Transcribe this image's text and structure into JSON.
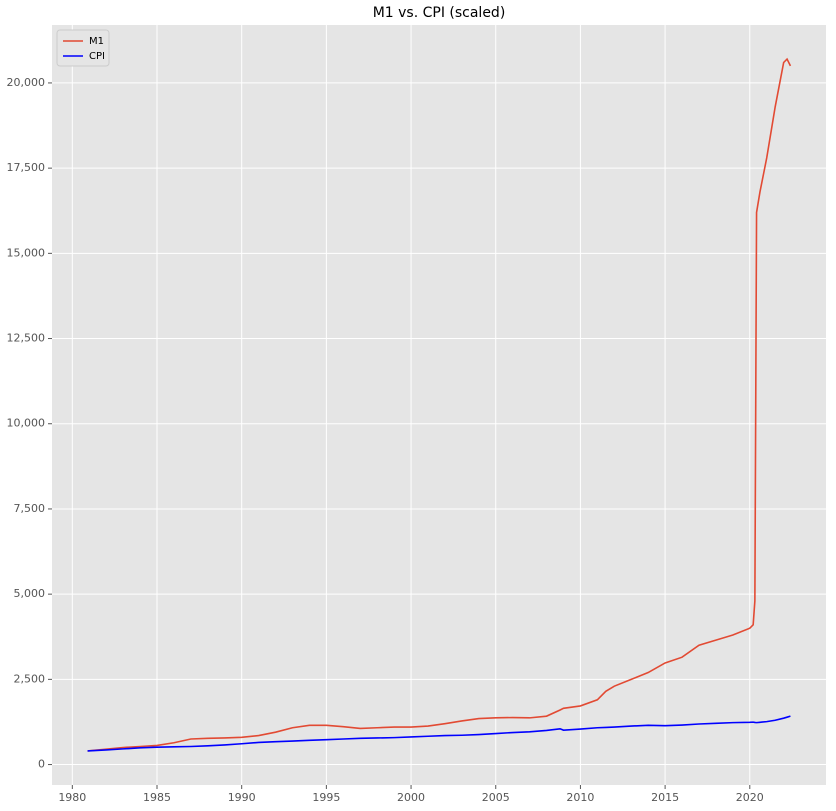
{
  "chart_data": {
    "type": "line",
    "title": "M1 vs. CPI (scaled)",
    "x": [
      1980.9,
      1982,
      1983,
      1984,
      1985,
      1986,
      1987,
      1988,
      1989,
      1990,
      1991,
      1992,
      1993,
      1994,
      1995,
      1996,
      1997,
      1998,
      1999,
      2000,
      2001,
      2002,
      2003,
      2004,
      2005,
      2006,
      2007,
      2008,
      2008.8,
      2009,
      2010,
      2011,
      2011.5,
      2012,
      2013,
      2014,
      2015,
      2016,
      2017,
      2018,
      2019,
      2020.0,
      2020.2,
      2020.3,
      2020.4,
      2020.6,
      2021.0,
      2021.5,
      2022.0,
      2022.2,
      2022.4
    ],
    "series": [
      {
        "name": "M1",
        "color": "#e24a33",
        "values": [
          400,
          450,
          500,
          530,
          560,
          640,
          750,
          770,
          780,
          800,
          850,
          950,
          1080,
          1150,
          1150,
          1110,
          1060,
          1080,
          1100,
          1100,
          1130,
          1200,
          1280,
          1350,
          1370,
          1380,
          1370,
          1420,
          1600,
          1650,
          1720,
          1900,
          2150,
          2300,
          2500,
          2700,
          2980,
          3150,
          3500,
          3650,
          3800,
          4000,
          4100,
          4800,
          16200,
          16800,
          17800,
          19300,
          20600,
          20700,
          20500
        ]
      },
      {
        "name": "CPI",
        "color": "#0000ff",
        "values": [
          400,
          430,
          460,
          490,
          510,
          520,
          530,
          550,
          575,
          610,
          650,
          670,
          690,
          710,
          730,
          750,
          770,
          780,
          790,
          810,
          830,
          850,
          860,
          880,
          910,
          940,
          960,
          1000,
          1050,
          1010,
          1040,
          1080,
          1090,
          1100,
          1130,
          1150,
          1140,
          1160,
          1190,
          1210,
          1230,
          1240,
          1245,
          1235,
          1230,
          1240,
          1260,
          1300,
          1360,
          1390,
          1420
        ]
      }
    ],
    "xlim": [
      1978.8,
      2024.5
    ],
    "xticks": [
      1980,
      1985,
      1990,
      1995,
      2000,
      2005,
      2010,
      2015,
      2020
    ],
    "ylim": [
      -600,
      21700
    ],
    "yticks": [
      0,
      {
        "value": 2500,
        "label": "2,500"
      },
      {
        "value": 5000,
        "label": "5,000"
      },
      {
        "value": 7500,
        "label": "7,500"
      },
      {
        "value": 10000,
        "label": "10,000"
      },
      {
        "value": 12500,
        "label": "12,500"
      },
      {
        "value": 15000,
        "label": "15,000"
      },
      {
        "value": 17500,
        "label": "17,500"
      },
      {
        "value": 20000,
        "label": "20,000"
      }
    ],
    "grid": true,
    "legend": "upper left"
  }
}
